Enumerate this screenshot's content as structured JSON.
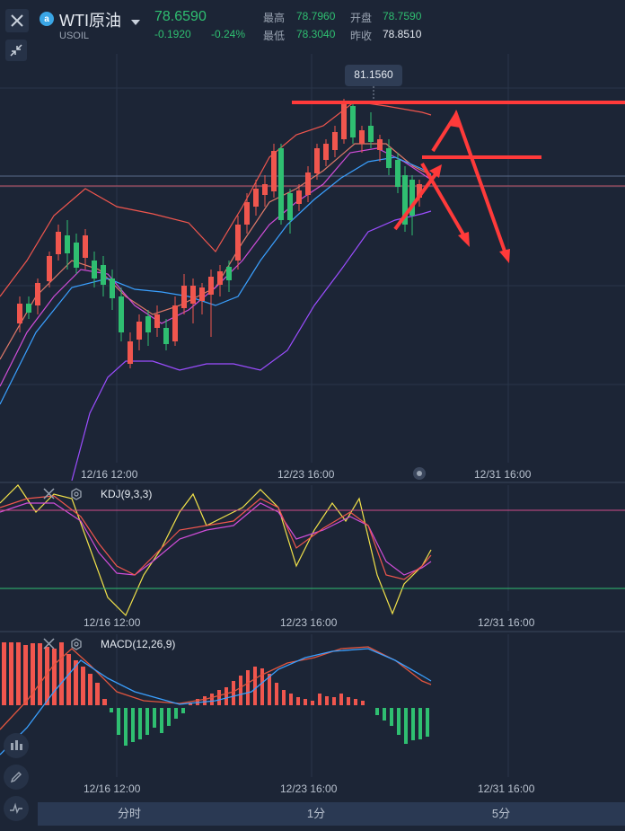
{
  "header": {
    "symbol_name": "WTI原油",
    "symbol_code": "USOIL",
    "price": "78.6590",
    "change": "-0.1920",
    "change_pct": "-0.24%",
    "high_label": "最高",
    "high_value": "78.7960",
    "low_label": "最低",
    "low_value": "78.3040",
    "open_label": "开盘",
    "open_value": "78.7590",
    "prev_close_label": "昨收",
    "prev_close_value": "78.8510",
    "badge_glyph": "a"
  },
  "main_chart": {
    "price_tag": "81.1560",
    "x_ticks": [
      "12/16 12:00",
      "12/23 16:00",
      "12/31 16:00"
    ]
  },
  "kdj": {
    "label": "KDJ(9,3,3)",
    "x_ticks": [
      "12/16 12:00",
      "12/23 16:00",
      "12/31 16:00"
    ]
  },
  "macd": {
    "label": "MACD(12,26,9)",
    "x_ticks": [
      "12/16 12:00",
      "12/23 16:00",
      "12/31 16:00"
    ]
  },
  "tabs": [
    "分时",
    "1分",
    "5分"
  ],
  "icons": {
    "close": "close-icon",
    "collapse": "collapse-icon",
    "dropdown": "caret-down-icon",
    "settings": "gear-icon",
    "candle_tool": "candles-icon",
    "pen_tool": "pen-icon",
    "indicator_tool": "indicator-icon"
  },
  "colors": {
    "up": "#2fbf71",
    "down": "#f0564e",
    "background": "#1c2536",
    "annotation": "#ff3a3a",
    "ma_blue": "#3aa0ff",
    "ma_purple": "#9b4dff",
    "ma_magenta": "#d04dd9",
    "kdj_yellow": "#f2e24a"
  }
}
